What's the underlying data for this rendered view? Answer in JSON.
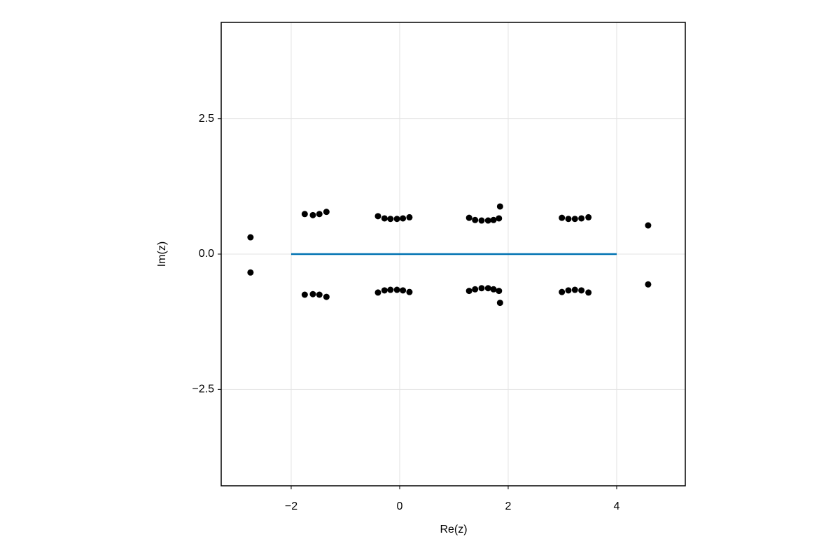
{
  "chart_data": {
    "type": "scatter",
    "x_label": "Re(z)",
    "y_label": "Im(z)",
    "xlim": [
      -3.29,
      5.265
    ],
    "ylim": [
      -4.28,
      4.28
    ],
    "xticks": [
      {
        "value": -2,
        "label": "−2"
      },
      0,
      2,
      4
    ],
    "yticks": [
      {
        "value": -2.5,
        "label": "−2.5"
      },
      {
        "value": 0,
        "label": "0.0"
      },
      {
        "value": 2.5,
        "label": "2.5"
      }
    ],
    "grid": true,
    "series": [
      {
        "type": "line",
        "color": "#0072b2",
        "x": [
          -2,
          4
        ],
        "y": [
          0,
          0
        ]
      },
      {
        "type": "scatter",
        "color": "#000000",
        "x": [
          -2.75,
          -2.75,
          -1.75,
          -1.6,
          -1.48,
          -1.35,
          -1.75,
          -1.6,
          -1.48,
          -1.35,
          -0.4,
          -0.28,
          -0.17,
          -0.05,
          0.06,
          0.18,
          -0.4,
          -0.28,
          -0.17,
          -0.05,
          0.06,
          0.18,
          1.28,
          1.39,
          1.51,
          1.63,
          1.73,
          1.83,
          1.85,
          1.28,
          1.39,
          1.51,
          1.63,
          1.73,
          1.83,
          1.85,
          2.99,
          3.11,
          3.23,
          3.35,
          3.48,
          2.99,
          3.11,
          3.23,
          3.35,
          3.48,
          4.58,
          4.58
        ],
        "y": [
          0.31,
          -0.34,
          0.74,
          0.72,
          0.74,
          0.78,
          -0.75,
          -0.74,
          -0.75,
          -0.79,
          0.7,
          0.66,
          0.65,
          0.65,
          0.66,
          0.68,
          -0.71,
          -0.67,
          -0.66,
          -0.66,
          -0.67,
          -0.7,
          0.67,
          0.63,
          0.62,
          0.62,
          0.63,
          0.66,
          0.88,
          -0.68,
          -0.65,
          -0.63,
          -0.63,
          -0.65,
          -0.68,
          -0.9,
          0.67,
          0.65,
          0.65,
          0.66,
          0.68,
          -0.7,
          -0.67,
          -0.66,
          -0.67,
          -0.71,
          0.53,
          -0.56
        ]
      }
    ]
  }
}
